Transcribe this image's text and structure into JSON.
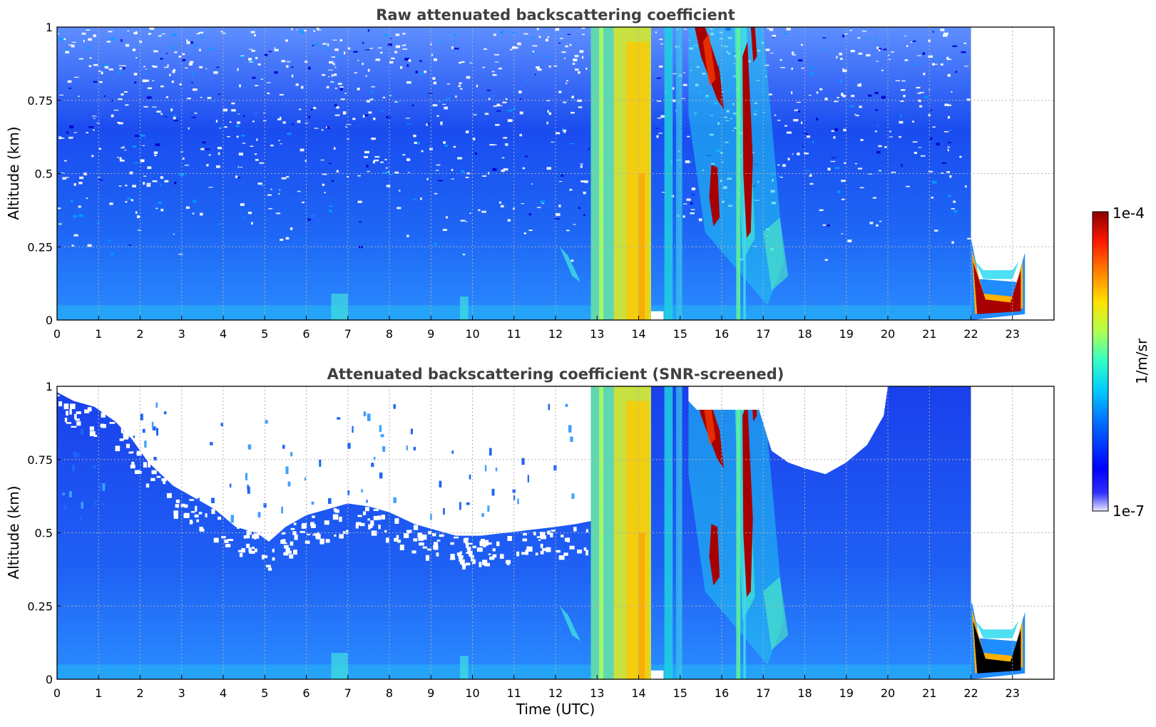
{
  "chart_data": [
    {
      "type": "heatmap",
      "title": "Raw attenuated backscattering coefficient",
      "xlabel": "",
      "ylabel": "Altitude (km)",
      "xlim": [
        0,
        24
      ],
      "ylim": [
        0,
        1
      ],
      "x_ticks": [
        "0",
        "1",
        "2",
        "3",
        "4",
        "5",
        "6",
        "7",
        "8",
        "9",
        "10",
        "11",
        "12",
        "13",
        "14",
        "15",
        "16",
        "17",
        "18",
        "19",
        "20",
        "21",
        "22",
        "23"
      ],
      "y_ticks": [
        {
          "value": 0,
          "label": "0"
        },
        {
          "value": 0.25,
          "label": "0.25"
        },
        {
          "value": 0.5,
          "label": "0.5"
        },
        {
          "value": 0.75,
          "label": "0.75"
        },
        {
          "value": 1,
          "label": "1"
        }
      ],
      "grid": true,
      "data_end_hour": 23.3
    },
    {
      "type": "heatmap",
      "title": "Attenuated backscattering coefficient (SNR-screened)",
      "xlabel": "Time (UTC)",
      "ylabel": "Altitude (km)",
      "xlim": [
        0,
        24
      ],
      "ylim": [
        0,
        1
      ],
      "x_ticks": [
        "0",
        "1",
        "2",
        "3",
        "4",
        "5",
        "6",
        "7",
        "8",
        "9",
        "10",
        "11",
        "12",
        "13",
        "14",
        "15",
        "16",
        "17",
        "18",
        "19",
        "20",
        "21",
        "22",
        "23"
      ],
      "y_ticks": [
        {
          "value": 0,
          "label": "0"
        },
        {
          "value": 0.25,
          "label": "0.25"
        },
        {
          "value": 0.5,
          "label": "0.5"
        },
        {
          "value": 0.75,
          "label": "0.75"
        },
        {
          "value": 1,
          "label": "1"
        }
      ],
      "grid": true,
      "data_end_hour": 23.3
    }
  ],
  "colorbar": {
    "label": "1/m/sr",
    "max_label": "1e-4",
    "min_label": "1e-7",
    "colormap": "jet"
  }
}
